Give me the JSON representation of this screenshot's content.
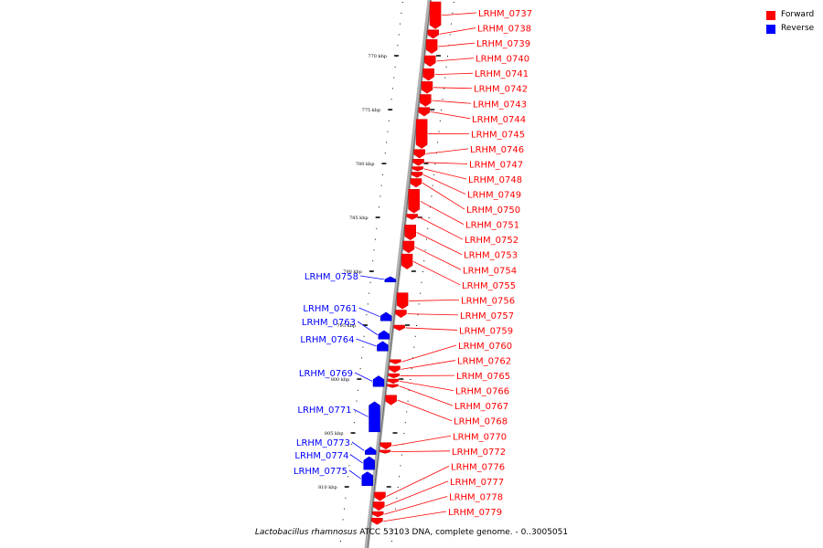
{
  "legend": [
    {
      "label": "Forward",
      "color": "#ff0000"
    },
    {
      "label": "Reverse",
      "color": "#0000ff"
    }
  ],
  "caption": {
    "organism": "Lactobacillus rhamnosus",
    "rest": " ATCC 53103 DNA, complete genome. - 0..3005051"
  },
  "colors": {
    "forward": "#ff0000",
    "reverse": "#0000ff",
    "axis": "#999999"
  },
  "ticks": [
    {
      "label": "770 kbp",
      "pos": 770
    },
    {
      "label": "775 kbp",
      "pos": 775
    },
    {
      "label": "780 kbp",
      "pos": 780
    },
    {
      "label": "785 kbp",
      "pos": 785
    },
    {
      "label": "790 kbp",
      "pos": 790
    },
    {
      "label": "795 kbp",
      "pos": 795
    },
    {
      "label": "800 kbp",
      "pos": 800
    },
    {
      "label": "805 kbp",
      "pos": 805
    },
    {
      "label": "810 kbp",
      "pos": 810
    }
  ],
  "genes": [
    {
      "name": "LRHM_0737",
      "strand": "+",
      "start": 765.0,
      "end": 767.5
    },
    {
      "name": "LRHM_0738",
      "strand": "+",
      "start": 767.6,
      "end": 768.4
    },
    {
      "name": "LRHM_0739",
      "strand": "+",
      "start": 768.5,
      "end": 769.8
    },
    {
      "name": "LRHM_0740",
      "strand": "+",
      "start": 770.0,
      "end": 771.0
    },
    {
      "name": "LRHM_0741",
      "strand": "+",
      "start": 771.2,
      "end": 772.3
    },
    {
      "name": "LRHM_0742",
      "strand": "+",
      "start": 772.4,
      "end": 773.5
    },
    {
      "name": "LRHM_0743",
      "strand": "+",
      "start": 773.6,
      "end": 774.7
    },
    {
      "name": "LRHM_0744",
      "strand": "+",
      "start": 774.8,
      "end": 775.6
    },
    {
      "name": "LRHM_0745",
      "strand": "+",
      "start": 775.9,
      "end": 778.6
    },
    {
      "name": "LRHM_0746",
      "strand": "+",
      "start": 778.7,
      "end": 779.5
    },
    {
      "name": "LRHM_0747",
      "strand": "+",
      "start": 779.6,
      "end": 780.2
    },
    {
      "name": "LRHM_0748",
      "strand": "+",
      "start": 780.3,
      "end": 780.7
    },
    {
      "name": "LRHM_0749",
      "strand": "+",
      "start": 780.8,
      "end": 781.3
    },
    {
      "name": "LRHM_0750",
      "strand": "+",
      "start": 781.4,
      "end": 782.2
    },
    {
      "name": "LRHM_0751",
      "strand": "+",
      "start": 782.4,
      "end": 784.6
    },
    {
      "name": "LRHM_0752",
      "strand": "+",
      "start": 784.7,
      "end": 785.2
    },
    {
      "name": "LRHM_0753",
      "strand": "+",
      "start": 785.7,
      "end": 787.1
    },
    {
      "name": "LRHM_0754",
      "strand": "+",
      "start": 787.2,
      "end": 788.3
    },
    {
      "name": "LRHM_0755",
      "strand": "+",
      "start": 788.4,
      "end": 789.8
    },
    {
      "name": "LRHM_0756",
      "strand": "+",
      "start": 792.0,
      "end": 793.5
    },
    {
      "name": "LRHM_0757",
      "strand": "+",
      "start": 793.6,
      "end": 794.3
    },
    {
      "name": "LRHM_0758",
      "strand": "-",
      "start": 790.5,
      "end": 791.0
    },
    {
      "name": "LRHM_0759",
      "strand": "+",
      "start": 795.0,
      "end": 795.5
    },
    {
      "name": "LRHM_0760",
      "strand": "+",
      "start": 798.2,
      "end": 798.6
    },
    {
      "name": "LRHM_0761",
      "strand": "-",
      "start": 793.8,
      "end": 794.6
    },
    {
      "name": "LRHM_0762",
      "strand": "+",
      "start": 798.8,
      "end": 799.4
    },
    {
      "name": "LRHM_0763",
      "strand": "-",
      "start": 795.5,
      "end": 796.3
    },
    {
      "name": "LRHM_0764",
      "strand": "-",
      "start": 796.5,
      "end": 797.4
    },
    {
      "name": "LRHM_0765",
      "strand": "+",
      "start": 799.5,
      "end": 799.9
    },
    {
      "name": "LRHM_0766",
      "strand": "+",
      "start": 800.0,
      "end": 800.4
    },
    {
      "name": "LRHM_0767",
      "strand": "+",
      "start": 800.5,
      "end": 800.8
    },
    {
      "name": "LRHM_0768",
      "strand": "+",
      "start": 801.5,
      "end": 802.4
    },
    {
      "name": "LRHM_0769",
      "strand": "-",
      "start": 799.7,
      "end": 800.7
    },
    {
      "name": "LRHM_0770",
      "strand": "+",
      "start": 805.9,
      "end": 806.5
    },
    {
      "name": "LRHM_0771",
      "strand": "-",
      "start": 802.1,
      "end": 804.9
    },
    {
      "name": "LRHM_0772",
      "strand": "+",
      "start": 806.6,
      "end": 806.9
    },
    {
      "name": "LRHM_0773",
      "strand": "-",
      "start": 806.3,
      "end": 807.0
    },
    {
      "name": "LRHM_0774",
      "strand": "-",
      "start": 807.2,
      "end": 808.4
    },
    {
      "name": "LRHM_0775",
      "strand": "-",
      "start": 808.6,
      "end": 809.9
    },
    {
      "name": "LRHM_0776",
      "strand": "+",
      "start": 810.5,
      "end": 811.3
    },
    {
      "name": "LRHM_0777",
      "strand": "+",
      "start": 811.4,
      "end": 812.2
    },
    {
      "name": "LRHM_0778",
      "strand": "+",
      "start": 812.3,
      "end": 812.8
    },
    {
      "name": "LRHM_0779",
      "strand": "+",
      "start": 812.9,
      "end": 813.5
    }
  ]
}
